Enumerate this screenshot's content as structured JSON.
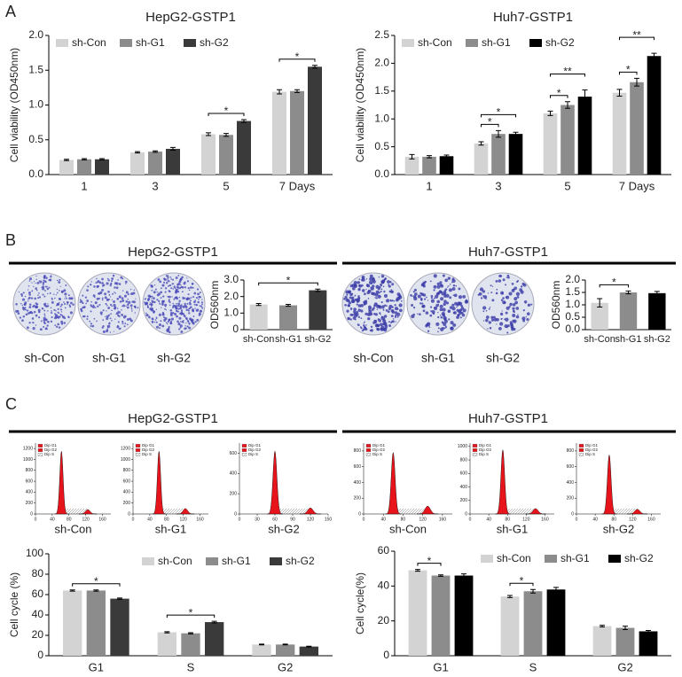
{
  "panels": [
    {
      "label": "A"
    },
    {
      "label": "B",
      "headings": [
        "HepG2-GSTP1",
        "Huh7-GSTP1"
      ],
      "plate_labels": [
        [
          "sh-Con",
          "sh-G1",
          "sh-G2"
        ],
        [
          "sh-Con",
          "sh-G1",
          "sh-G2"
        ]
      ]
    },
    {
      "label": "C",
      "headings": [
        "HepG2-GSTP1",
        "Huh7-GSTP1"
      ]
    }
  ],
  "chart_data": [
    {
      "type": "bar",
      "title": "HepG2-GSTP1",
      "ylabel": "Cell viability (OD450nm)",
      "categories": [
        "1",
        "3",
        "5",
        "7 Days"
      ],
      "series": [
        {
          "name": "sh-Con",
          "color": "#d3d3d3",
          "values": [
            0.21,
            0.32,
            0.58,
            1.19
          ],
          "errors": [
            0.01,
            0.01,
            0.02,
            0.03
          ]
        },
        {
          "name": "sh-G1",
          "color": "#8c8c8c",
          "values": [
            0.22,
            0.33,
            0.57,
            1.2
          ],
          "errors": [
            0.01,
            0.01,
            0.02,
            0.02
          ]
        },
        {
          "name": "sh-G2",
          "color": "#3a3a3a",
          "values": [
            0.22,
            0.37,
            0.77,
            1.55
          ],
          "errors": [
            0.01,
            0.02,
            0.02,
            0.02
          ]
        }
      ],
      "ylim": [
        0,
        2
      ],
      "yticks": [
        {
          "value": 0,
          "label": "0.0"
        },
        0.5,
        {
          "value": 1,
          "label": "1.0"
        },
        1.5,
        {
          "value": 2,
          "label": "2.0"
        }
      ],
      "legend": "top-left",
      "annotations": [
        {
          "category": "5",
          "from": "sh-Con",
          "to": "sh-G2",
          "text": "*"
        },
        {
          "category": "7 Days",
          "from": "sh-Con",
          "to": "sh-G2",
          "text": "*"
        }
      ]
    },
    {
      "type": "bar",
      "title": "Huh7-GSTP1",
      "ylabel": "Cell viability (OD450nm)",
      "categories": [
        "1",
        "3",
        "5",
        "7 Days"
      ],
      "series": [
        {
          "name": "sh-Con",
          "color": "#d3d3d3",
          "values": [
            0.32,
            0.56,
            1.1,
            1.47
          ],
          "errors": [
            0.04,
            0.03,
            0.04,
            0.06
          ]
        },
        {
          "name": "sh-G1",
          "color": "#8c8c8c",
          "values": [
            0.32,
            0.73,
            1.25,
            1.66
          ],
          "errors": [
            0.02,
            0.06,
            0.06,
            0.07
          ]
        },
        {
          "name": "sh-G2",
          "color": "#000000",
          "values": [
            0.33,
            0.73,
            1.4,
            2.13
          ],
          "errors": [
            0.02,
            0.03,
            0.12,
            0.05
          ]
        }
      ],
      "ylim": [
        0,
        2.5
      ],
      "yticks": [
        {
          "value": 0,
          "label": "0.0"
        },
        0.5,
        {
          "value": 1,
          "label": "1.0"
        },
        1.5,
        {
          "value": 2,
          "label": "2.0"
        },
        2.5
      ],
      "legend": "top-left",
      "annotations": [
        {
          "category": "3",
          "from": "sh-Con",
          "to": "sh-G1",
          "text": "*"
        },
        {
          "category": "3",
          "from": "sh-Con",
          "to": "sh-G2",
          "text": "*"
        },
        {
          "category": "5",
          "from": "sh-Con",
          "to": "sh-G1",
          "text": "*"
        },
        {
          "category": "5",
          "from": "sh-Con",
          "to": "sh-G2",
          "text": "**"
        },
        {
          "category": "7 Days",
          "from": "sh-Con",
          "to": "sh-G1",
          "text": "*"
        },
        {
          "category": "7 Days",
          "from": "sh-Con",
          "to": "sh-G2",
          "text": "**"
        }
      ]
    },
    {
      "type": "bar",
      "ylabel": "OD560nm",
      "categories": [
        "sh-Con",
        "sh-G1",
        "sh-G2"
      ],
      "values": [
        1.52,
        1.47,
        2.38
      ],
      "errors": [
        0.06,
        0.06,
        0.07
      ],
      "colors": [
        "#d3d3d3",
        "#8c8c8c",
        "#3a3a3a"
      ],
      "ylim": [
        0,
        3
      ],
      "yticks": [
        0,
        {
          "value": 1,
          "label": "1.0"
        },
        {
          "value": 2,
          "label": "2.0"
        },
        {
          "value": 3,
          "label": "3.0"
        }
      ],
      "annotations": [
        {
          "from": "sh-Con",
          "to": "sh-G2",
          "text": "*"
        }
      ]
    },
    {
      "type": "bar",
      "ylabel": "OD560nm",
      "categories": [
        "sh-Con",
        "sh-G1",
        "sh-G2"
      ],
      "values": [
        1.08,
        1.5,
        1.47
      ],
      "errors": [
        0.17,
        0.06,
        0.07
      ],
      "colors": [
        "#d3d3d3",
        "#8c8c8c",
        "#000000"
      ],
      "ylim": [
        0,
        2
      ],
      "yticks": [
        {
          "value": 0,
          "label": "0.0"
        },
        0.5,
        {
          "value": 1,
          "label": "1.0"
        },
        1.5,
        {
          "value": 2,
          "label": "2.0"
        }
      ],
      "annotations": [
        {
          "from": "sh-Con",
          "to": "sh-G1",
          "text": "*"
        }
      ]
    },
    {
      "type": "flow",
      "title": "sh-Con",
      "xlim": [
        0,
        180
      ],
      "xticks": [
        0,
        40,
        80,
        120,
        160
      ],
      "ylim": [
        0,
        1300
      ],
      "yticks": [
        0,
        200,
        400,
        600,
        800,
        1000,
        1200
      ],
      "series": [
        {
          "name": "Dip G1",
          "color": "#e8141c",
          "x": 62,
          "value": 1150
        },
        {
          "name": "Dip G2",
          "color": "#e8141c",
          "x": 125,
          "value": 80
        },
        {
          "name": "Dip S",
          "color": "#ffffff"
        }
      ]
    },
    {
      "type": "flow",
      "title": "sh-G1",
      "xlim": [
        0,
        180
      ],
      "xticks": [
        0,
        40,
        80,
        120,
        160
      ],
      "ylim": [
        0,
        1300
      ],
      "yticks": [
        0,
        200,
        400,
        600,
        800,
        1000,
        1200
      ],
      "series": [
        {
          "name": "Dip G1",
          "color": "#e8141c",
          "x": 62,
          "value": 1150
        },
        {
          "name": "Dip G2",
          "color": "#e8141c",
          "x": 125,
          "value": 100
        },
        {
          "name": "Dip S",
          "color": "#ffffff"
        }
      ]
    },
    {
      "type": "flow",
      "title": "sh-G2",
      "xlim": [
        0,
        150
      ],
      "xticks": [
        0,
        30,
        60,
        90,
        120,
        150
      ],
      "ylim": [
        0,
        700
      ],
      "yticks": [
        0,
        200,
        400,
        600
      ],
      "series": [
        {
          "name": "Dip G1",
          "color": "#e8141c",
          "x": 60,
          "value": 620
        },
        {
          "name": "Dip G2",
          "color": "#e8141c",
          "x": 120,
          "value": 60
        },
        {
          "name": "Dip S",
          "color": "#ffffff"
        }
      ]
    },
    {
      "type": "flow",
      "title": "sh-Con",
      "xlim": [
        0,
        180
      ],
      "xticks": [
        0,
        40,
        80,
        120,
        160
      ],
      "ylim": [
        0,
        900
      ],
      "yticks": [
        0,
        200,
        400,
        600,
        800
      ],
      "series": [
        {
          "name": "Dip G1",
          "color": "#e8141c",
          "x": 60,
          "value": 780
        },
        {
          "name": "Dip G2",
          "color": "#e8141c",
          "x": 130,
          "value": 100
        },
        {
          "name": "Dip S",
          "color": "#ffffff"
        }
      ]
    },
    {
      "type": "flow",
      "title": "sh-G1",
      "xlim": [
        0,
        180
      ],
      "xticks": [
        0,
        40,
        80,
        120,
        160
      ],
      "ylim": [
        0,
        1050
      ],
      "yticks": [
        0,
        200,
        400,
        600,
        800,
        1000
      ],
      "series": [
        {
          "name": "Dip G1",
          "color": "#e8141c",
          "x": 70,
          "value": 950
        },
        {
          "name": "Dip G2",
          "color": "#e8141c",
          "x": 140,
          "value": 80
        },
        {
          "name": "Dip S",
          "color": "#ffffff"
        }
      ]
    },
    {
      "type": "flow",
      "title": "sh-G2",
      "xlim": [
        0,
        180
      ],
      "xticks": [
        0,
        40,
        80,
        120,
        160
      ],
      "ylim": [
        0,
        900
      ],
      "yticks": [
        0,
        200,
        400,
        600,
        800
      ],
      "series": [
        {
          "name": "Dip G1",
          "color": "#e8141c",
          "x": 70,
          "value": 750
        },
        {
          "name": "Dip G2",
          "color": "#e8141c",
          "x": 130,
          "value": 60
        },
        {
          "name": "Dip S",
          "color": "#ffffff"
        }
      ]
    },
    {
      "type": "bar",
      "ylabel": "Cell cycle (%)",
      "categories": [
        "G1",
        "S",
        "G2"
      ],
      "series": [
        {
          "name": "sh-Con",
          "color": "#d3d3d3",
          "values": [
            64,
            23,
            11
          ],
          "errors": [
            0.6,
            0.6,
            0.4
          ]
        },
        {
          "name": "sh-G1",
          "color": "#8c8c8c",
          "values": [
            64,
            22,
            11
          ],
          "errors": [
            0.6,
            0.6,
            0.4
          ]
        },
        {
          "name": "sh-G2",
          "color": "#3a3a3a",
          "values": [
            56,
            33,
            9
          ],
          "errors": [
            0.6,
            0.8,
            0.4
          ]
        }
      ],
      "ylim": [
        0,
        100
      ],
      "yticks": [
        0,
        20,
        40,
        60,
        80,
        100
      ],
      "legend": "top-right",
      "annotations": [
        {
          "category": "G1",
          "from": "sh-Con",
          "to": "sh-G2",
          "text": "*"
        },
        {
          "category": "S",
          "from": "sh-Con",
          "to": "sh-G2",
          "text": "*"
        }
      ]
    },
    {
      "type": "bar",
      "ylabel": "Cell cycle(%)",
      "categories": [
        "G1",
        "S",
        "G2"
      ],
      "series": [
        {
          "name": "sh-Con",
          "color": "#d3d3d3",
          "values": [
            49,
            34,
            17
          ],
          "errors": [
            0.5,
            0.6,
            0.5
          ]
        },
        {
          "name": "sh-G1",
          "color": "#8c8c8c",
          "values": [
            46,
            37,
            16
          ],
          "errors": [
            0.4,
            1,
            1
          ]
        },
        {
          "name": "sh-G2",
          "color": "#000000",
          "values": [
            46,
            38,
            14
          ],
          "errors": [
            1,
            1.2,
            0.5
          ]
        }
      ],
      "ylim": [
        0,
        60
      ],
      "yticks": [
        0,
        20,
        40,
        60
      ],
      "legend": "top-right",
      "annotations": [
        {
          "category": "G1",
          "from": "sh-Con",
          "to": "sh-G1",
          "text": "*"
        },
        {
          "category": "S",
          "from": "sh-Con",
          "to": "sh-G1",
          "text": "*"
        }
      ]
    }
  ]
}
